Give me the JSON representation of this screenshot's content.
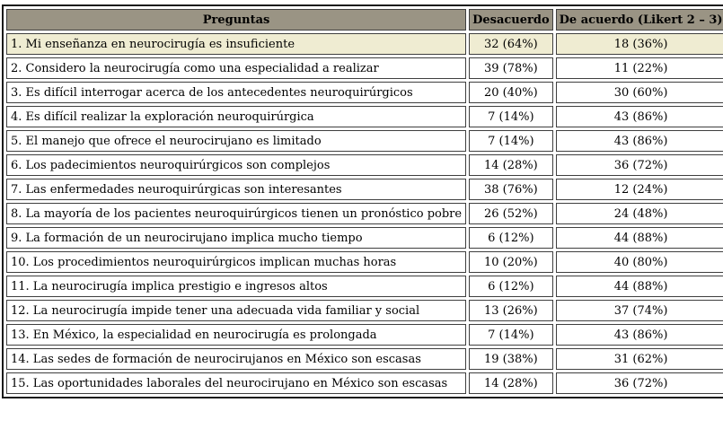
{
  "colors": {
    "header_bg": "#9a9484",
    "highlight_row_bg": "#efecd2",
    "row_bg": "#ffffff",
    "cell_border": "#3f3f3f",
    "outer_border": "#1a1a1a",
    "text": "#000000",
    "page_bg": "#ffffff"
  },
  "table": {
    "columns": [
      {
        "key": "question",
        "label": "Preguntas"
      },
      {
        "key": "desacuerdo",
        "label": "Desacuerdo"
      },
      {
        "key": "de_acuerdo",
        "label": "De acuerdo (Likert 2 – 3)"
      }
    ],
    "rows": [
      {
        "question": "1. Mi enseñanza en neurocirugía es insuficiente",
        "desacuerdo": "32 (64%)",
        "de_acuerdo": "18 (36%)",
        "highlighted": true
      },
      {
        "question": "2. Considero la neurocirugía como una especialidad a realizar",
        "desacuerdo": "39 (78%)",
        "de_acuerdo": "11 (22%)",
        "highlighted": false
      },
      {
        "question": "3. Es difícil interrogar acerca de los antecedentes neuroquirúrgicos",
        "desacuerdo": "20 (40%)",
        "de_acuerdo": "30 (60%)",
        "highlighted": false
      },
      {
        "question": "4. Es difícil realizar la exploración neuroquirúrgica",
        "desacuerdo": "7 (14%)",
        "de_acuerdo": "43 (86%)",
        "highlighted": false
      },
      {
        "question": "5. El manejo que ofrece el neurocirujano es limitado",
        "desacuerdo": "7 (14%)",
        "de_acuerdo": "43 (86%)",
        "highlighted": false
      },
      {
        "question": "6. Los padecimientos neuroquirúrgicos son complejos",
        "desacuerdo": "14 (28%)",
        "de_acuerdo": "36 (72%)",
        "highlighted": false
      },
      {
        "question": "7. Las enfermedades neuroquirúrgicas son interesantes",
        "desacuerdo": "38 (76%)",
        "de_acuerdo": "12 (24%)",
        "highlighted": false
      },
      {
        "question": "8. La mayoría de los pacientes neuroquirúrgicos tienen un pronóstico pobre",
        "desacuerdo": "26 (52%)",
        "de_acuerdo": "24 (48%)",
        "highlighted": false
      },
      {
        "question": "9. La formación de un neurocirujano implica mucho tiempo",
        "desacuerdo": "6 (12%)",
        "de_acuerdo": "44 (88%)",
        "highlighted": false
      },
      {
        "question": "10. Los procedimientos neuroquirúrgicos implican muchas horas",
        "desacuerdo": "10 (20%)",
        "de_acuerdo": "40 (80%)",
        "highlighted": false
      },
      {
        "question": "11. La neurocirugía implica prestigio e ingresos altos",
        "desacuerdo": "6 (12%)",
        "de_acuerdo": "44 (88%)",
        "highlighted": false
      },
      {
        "question": "12. La neurocirugía impide tener una adecuada vida familiar y social",
        "desacuerdo": "13 (26%)",
        "de_acuerdo": "37 (74%)",
        "highlighted": false
      },
      {
        "question": "13. En México, la especialidad en neurocirugía es prolongada",
        "desacuerdo": "7 (14%)",
        "de_acuerdo": "43 (86%)",
        "highlighted": false
      },
      {
        "question": "14. Las sedes de formación de neurocirujanos en México son escasas",
        "desacuerdo": "19 (38%)",
        "de_acuerdo": "31 (62%)",
        "highlighted": false
      },
      {
        "question": "15. Las oportunidades laborales del neurocirujano en México son escasas",
        "desacuerdo": "14 (28%)",
        "de_acuerdo": "36 (72%)",
        "highlighted": false
      }
    ]
  },
  "chart_data": {
    "type": "table",
    "title": "",
    "columns": [
      "Preguntas",
      "Desacuerdo",
      "De acuerdo (Likert 2 – 3)"
    ],
    "desacuerdo_counts": [
      32,
      39,
      20,
      7,
      7,
      14,
      38,
      26,
      6,
      10,
      6,
      13,
      7,
      19,
      14
    ],
    "desacuerdo_pct": [
      64,
      78,
      40,
      14,
      14,
      28,
      76,
      52,
      12,
      20,
      12,
      26,
      14,
      38,
      28
    ],
    "de_acuerdo_counts": [
      18,
      11,
      30,
      43,
      43,
      36,
      12,
      24,
      44,
      40,
      44,
      37,
      43,
      31,
      36
    ],
    "de_acuerdo_pct": [
      36,
      22,
      60,
      86,
      86,
      72,
      24,
      48,
      88,
      80,
      88,
      74,
      86,
      62,
      72
    ]
  }
}
